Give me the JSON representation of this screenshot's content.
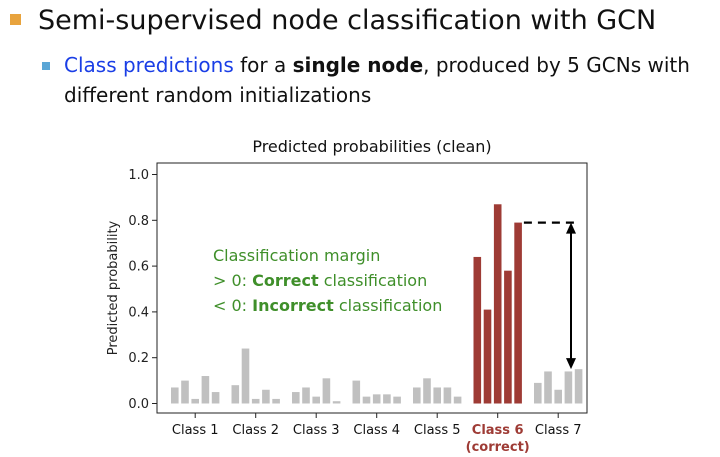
{
  "slide": {
    "heading": "Semi-supervised node classification with GCN",
    "sub_highlight": "Class predictions",
    "sub_part2": " for a ",
    "sub_bold": "single node",
    "sub_part3": ", produced by 5 GCNs with different random initializations"
  },
  "annotation": {
    "title": "Classification margin",
    "line1_prefix": "> 0: ",
    "line1_bold": "Correct",
    "line1_suffix": " classification",
    "line2_prefix": "< 0: ",
    "line2_bold": "Incorrect",
    "line2_suffix": " classification"
  },
  "chart_data": {
    "type": "bar",
    "title": "Predicted probabilities (clean)",
    "xlabel": "",
    "ylabel": "Predicted probability",
    "ylim": [
      0,
      1.0
    ],
    "yticks": [
      "0.0",
      "0.2",
      "0.4",
      "0.6",
      "0.8",
      "1.0"
    ],
    "grid": false,
    "categories": [
      "Class 1",
      "Class 2",
      "Class 3",
      "Class 4",
      "Class 5",
      "Class 6",
      "Class 7"
    ],
    "correct_category_index": 5,
    "correct_note": "(correct)",
    "series": [
      {
        "values": [
          0.07,
          0.08,
          0.05,
          0.1,
          0.07,
          0.64,
          0.09
        ]
      },
      {
        "values": [
          0.1,
          0.24,
          0.07,
          0.03,
          0.11,
          0.41,
          0.14
        ]
      },
      {
        "values": [
          0.02,
          0.02,
          0.03,
          0.04,
          0.07,
          0.87,
          0.06
        ]
      },
      {
        "values": [
          0.12,
          0.06,
          0.11,
          0.04,
          0.07,
          0.58,
          0.14
        ]
      },
      {
        "values": [
          0.05,
          0.02,
          0.01,
          0.03,
          0.03,
          0.79,
          0.15
        ]
      }
    ],
    "colors": {
      "default_bar": "#c0c0c0",
      "highlight_bar": "#9e3b35",
      "highlight_label": "#9e3b35"
    },
    "margin_marker": {
      "from_value": 0.79,
      "to_value": 0.15,
      "category_index": 6
    }
  }
}
